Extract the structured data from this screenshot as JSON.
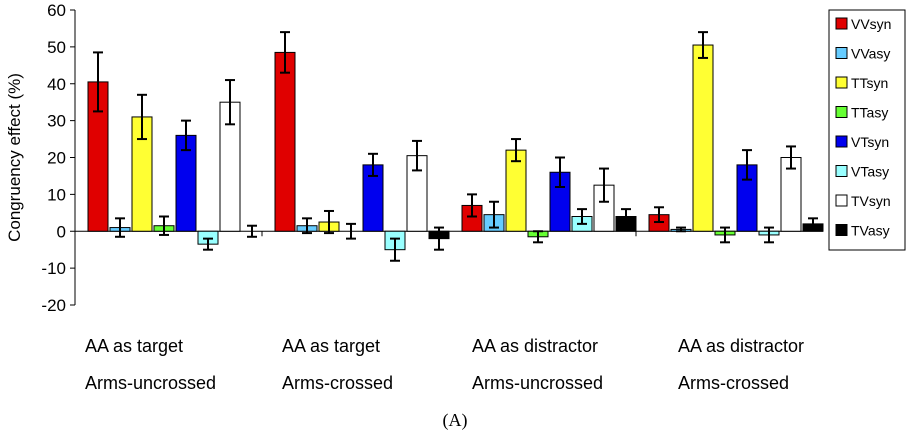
{
  "chart_data": {
    "type": "bar",
    "title": "",
    "xlabel": "",
    "ylabel": "Congruency effect (%)",
    "ylim": [
      -20,
      60
    ],
    "yticks": [
      -20,
      -10,
      0,
      10,
      20,
      30,
      40,
      50,
      60
    ],
    "grid": false,
    "legend_position": "right",
    "caption": "(A)",
    "groups": [
      {
        "line1": "AA as target",
        "line2": "Arms-uncrossed"
      },
      {
        "line1": "AA as target",
        "line2": "Arms-crossed"
      },
      {
        "line1": "AA as distractor",
        "line2": "Arms-uncrossed"
      },
      {
        "line1": "AA as distractor",
        "line2": "Arms-crossed"
      }
    ],
    "series": [
      {
        "name": "VVsyn",
        "color": "#e00000",
        "values": [
          40.5,
          48.5,
          7,
          4.5
        ],
        "errors": [
          8,
          5.5,
          3,
          2
        ]
      },
      {
        "name": "VVasy",
        "color": "#66ccff",
        "values": [
          1,
          1.5,
          4.5,
          0.5
        ],
        "errors": [
          2.5,
          2,
          3.5,
          0.5
        ]
      },
      {
        "name": "TTsyn",
        "color": "#ffff33",
        "values": [
          31,
          2.5,
          22,
          50.5
        ],
        "errors": [
          6,
          3,
          3,
          3.5
        ]
      },
      {
        "name": "TTasy",
        "color": "#66ff33",
        "values": [
          1.5,
          0,
          -1.5,
          -1
        ],
        "errors": [
          2.5,
          2,
          1.5,
          2
        ]
      },
      {
        "name": "VTsyn",
        "color": "#0000ee",
        "values": [
          26,
          18,
          16,
          18
        ],
        "errors": [
          4,
          3,
          4,
          4
        ]
      },
      {
        "name": "VTasy",
        "color": "#99ffff",
        "values": [
          -3.5,
          -5,
          4,
          -1
        ],
        "errors": [
          1.5,
          3,
          2,
          2
        ]
      },
      {
        "name": "TVsyn",
        "color": "#ffffff",
        "values": [
          35,
          20.5,
          12.5,
          20
        ],
        "errors": [
          6,
          4,
          4.5,
          3
        ]
      },
      {
        "name": "TVasy",
        "color": "#000000",
        "values": [
          0,
          -2,
          4,
          2
        ],
        "errors": [
          1.5,
          3,
          2,
          1.5
        ]
      }
    ]
  }
}
